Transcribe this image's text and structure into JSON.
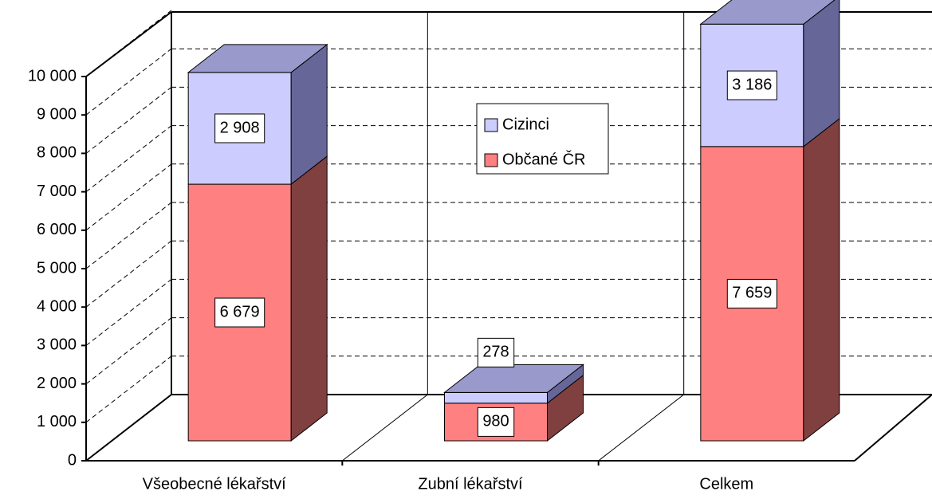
{
  "chart_data": {
    "type": "bar3d_stacked",
    "categories": [
      "Všeobecné lékařství",
      "Zubní lékařství",
      "Celkem"
    ],
    "series": [
      {
        "name": "Občané ČR",
        "color": "#ff8080",
        "side_color": "#804040",
        "values": [
          6679,
          980,
          7659
        ],
        "value_labels": [
          "6 679",
          "980",
          "7 659"
        ]
      },
      {
        "name": "Cizinci",
        "color": "#ccccff",
        "side_color": "#666699",
        "top_color": "#9999cc",
        "values": [
          2908,
          278,
          3186
        ],
        "value_labels": [
          "2 908",
          "278",
          "3 186"
        ]
      }
    ],
    "ylim": [
      0,
      10000
    ],
    "yticks": [
      0,
      {
        "value": 1000,
        "label": "1 000"
      },
      {
        "value": 2000,
        "label": "2 000"
      },
      {
        "value": 3000,
        "label": "3 000"
      },
      {
        "value": 4000,
        "label": "4 000"
      },
      {
        "value": 5000,
        "label": "5 000"
      },
      {
        "value": 6000,
        "label": "6 000"
      },
      {
        "value": 7000,
        "label": "7 000"
      },
      {
        "value": 8000,
        "label": "8 000"
      },
      {
        "value": 9000,
        "label": "9 000"
      },
      {
        "value": 10000,
        "label": "10 000"
      }
    ],
    "grid": true
  }
}
